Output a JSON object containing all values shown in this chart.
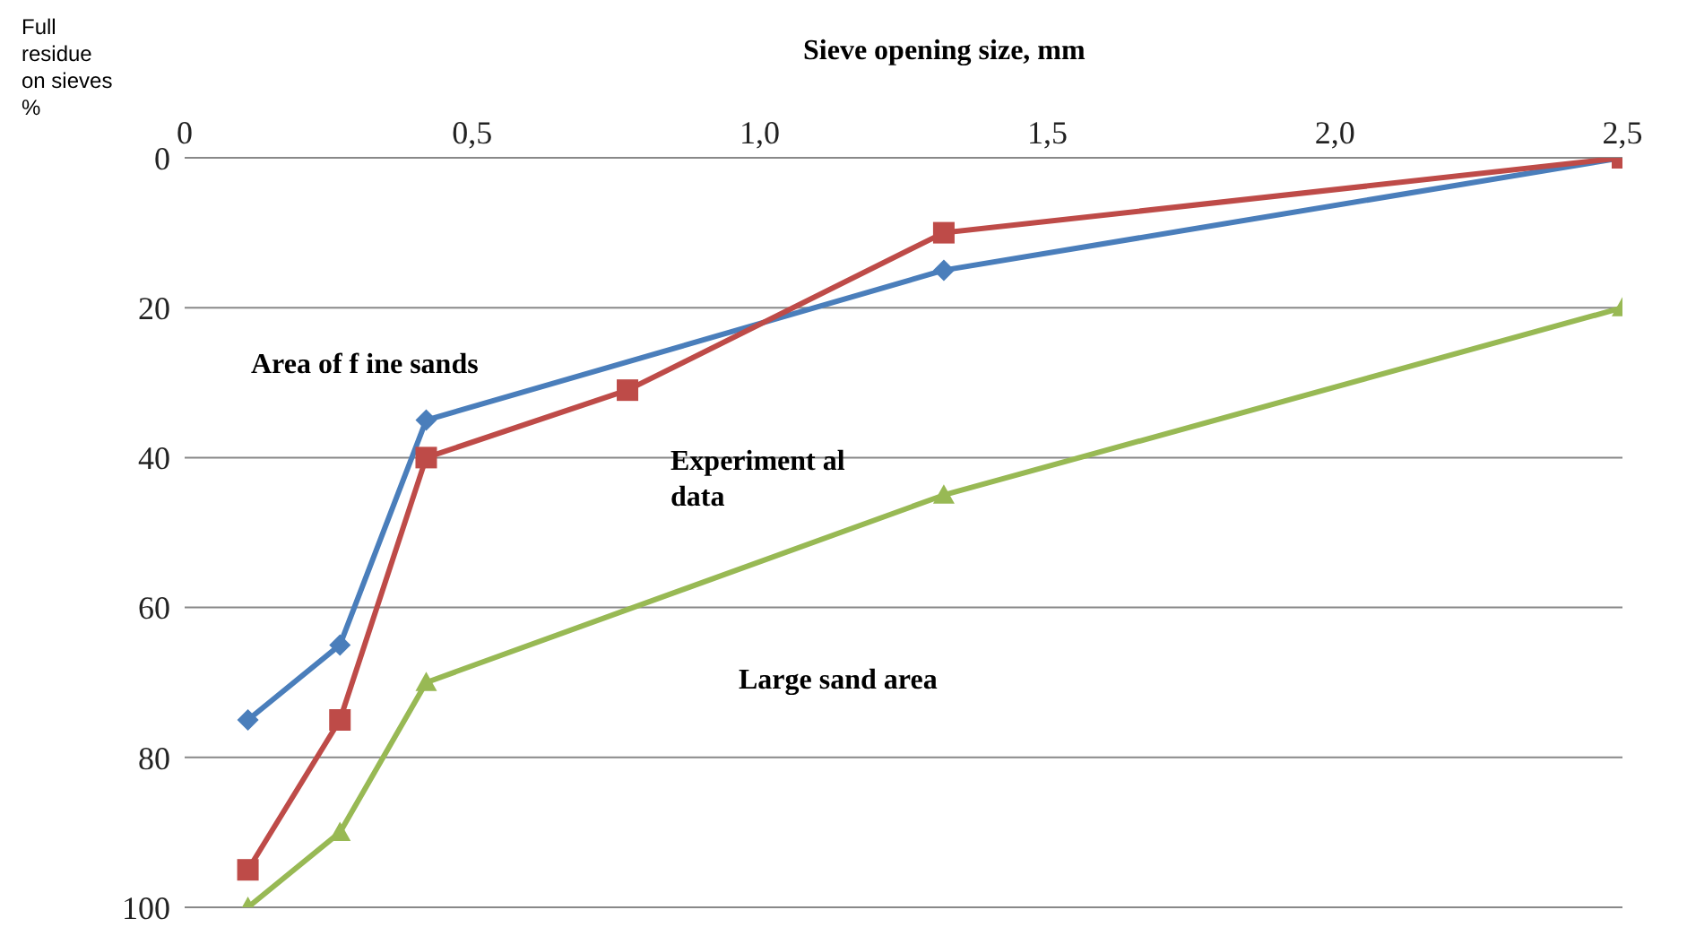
{
  "chart_data": {
    "type": "line",
    "xlabel": "Sieve opening size, mm",
    "ylabel": "Full residue on sieves %",
    "xlim": [
      0,
      2.5
    ],
    "xticks": [
      0,
      {
        "value": 0.5,
        "label": "0,5"
      },
      {
        "value": 1,
        "label": "1,0"
      },
      {
        "value": 1.5,
        "label": "1,5"
      },
      {
        "value": 2,
        "label": "2,0"
      },
      {
        "value": 2.5,
        "label": "2,5"
      }
    ],
    "ylim": [
      100,
      0
    ],
    "yticks": [
      0,
      20,
      40,
      60,
      80,
      100
    ],
    "grid": "y",
    "series": [
      {
        "color": "#4a7ebb",
        "marker": "diamond",
        "x": [
          0.11,
          0.27,
          0.42,
          1.32,
          2.5
        ],
        "values": [
          75,
          65,
          35,
          15,
          0
        ]
      },
      {
        "color": "#be4b48",
        "marker": "square",
        "x": [
          0.11,
          0.27,
          0.42,
          0.77,
          1.32,
          2.5
        ],
        "values": [
          95,
          75,
          40,
          31,
          10,
          0
        ]
      },
      {
        "color": "#98b954",
        "marker": "triangle",
        "x": [
          0.11,
          0.27,
          0.42,
          1.32,
          2.5
        ],
        "values": [
          100,
          90,
          70,
          45,
          20
        ]
      }
    ],
    "annotations": [
      "Area of f ine sands",
      "Experiment al data",
      "Large sand area"
    ]
  }
}
